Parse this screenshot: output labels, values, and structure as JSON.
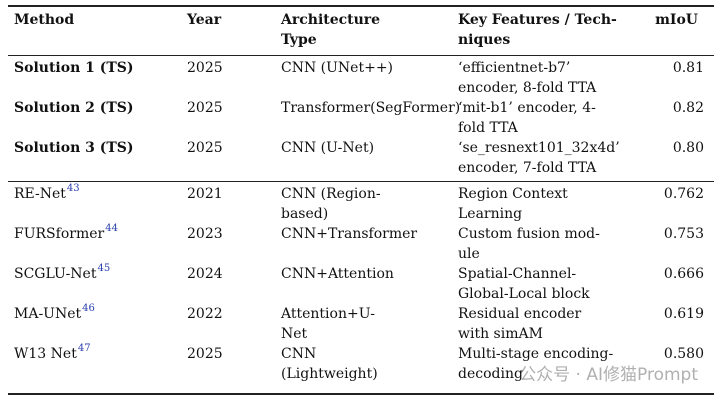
{
  "table": {
    "header": [
      [
        "Method"
      ],
      [
        "Year"
      ],
      [
        "Architecture",
        "Type"
      ],
      [
        "Key Features / Tech-",
        "niques"
      ],
      [
        "mIoU"
      ]
    ],
    "sections": [
      {
        "rows": [
          {
            "method": "Solution 1 (TS)",
            "year": "2025",
            "architecture": [
              "CNN (UNet++)"
            ],
            "features": [
              "‘efficientnet-b7’",
              "encoder, 8-fold TTA"
            ],
            "miou": "0.81"
          },
          {
            "method": "Solution 2 (TS)",
            "year": "2025",
            "architecture": [
              "Transformer(SegFormer)"
            ],
            "features": [
              "‘mit-b1’ encoder, 4-",
              "fold TTA"
            ],
            "miou": "0.82"
          },
          {
            "method": "Solution 3 (TS)",
            "year": "2025",
            "architecture": [
              "CNN (U-Net)"
            ],
            "features": [
              "‘se_resnext101_32x4d’",
              "encoder, 7-fold TTA"
            ],
            "miou": "0.80"
          }
        ]
      },
      {
        "rows": [
          {
            "method": "RE-Net",
            "ref": "43",
            "year": "2021",
            "architecture": [
              "CNN (Region-",
              "based)"
            ],
            "features": [
              "Region Context",
              "Learning"
            ],
            "miou": "0.762"
          },
          {
            "method": "FURSformer",
            "ref": "44",
            "year": "2023",
            "architecture": [
              "CNN+Transformer"
            ],
            "features": [
              "Custom fusion mod-",
              "ule"
            ],
            "miou": "0.753"
          },
          {
            "method": "SCGLU-Net",
            "ref": "45",
            "year": "2024",
            "architecture": [
              "CNN+Attention"
            ],
            "features": [
              "Spatial-Channel-",
              "Global-Local block"
            ],
            "miou": "0.666"
          },
          {
            "method": "MA-UNet",
            "ref": "46",
            "year": "2022",
            "architecture": [
              "Attention+U-",
              "Net"
            ],
            "features": [
              "Residual encoder",
              "with simAM"
            ],
            "miou": "0.619"
          },
          {
            "method": "W13 Net",
            "ref": "47",
            "year": "2025",
            "architecture": [
              "CNN",
              "(Lightweight)"
            ],
            "features": [
              "Multi-stage encoding-",
              "decoding"
            ],
            "miou": "0.580"
          }
        ]
      }
    ]
  },
  "watermark": "公众号 · AI修猫Prompt"
}
